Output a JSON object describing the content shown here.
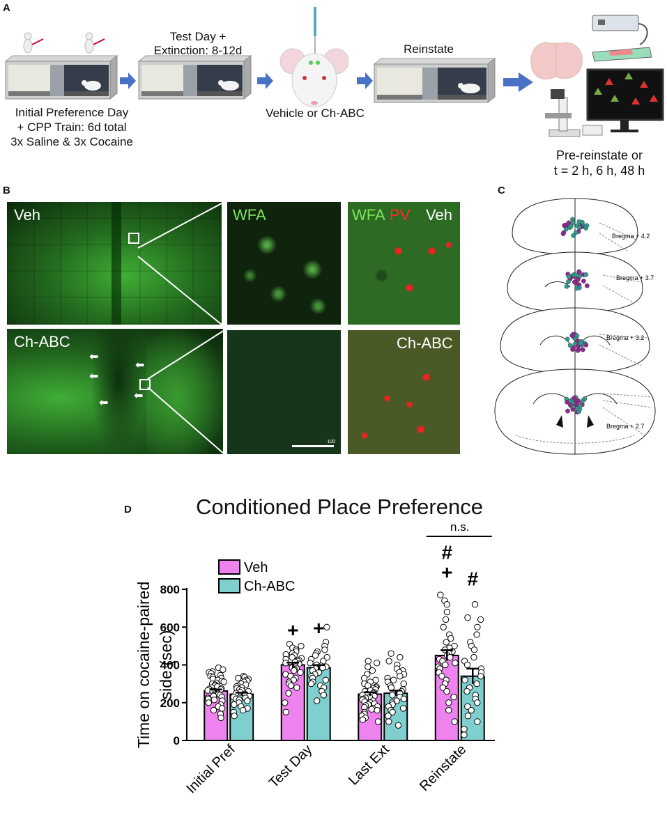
{
  "panelA": {
    "label": "A",
    "step1_line1": "Initial Preference Day",
    "step1_line2": "+ CPP Train: 6d total",
    "step1_line3": "3x Saline & 3x Cocaine",
    "step2_line1": "Test Day +",
    "step2_line2": "Extinction: 8-12d",
    "step3": "Vehicle or Ch-ABC",
    "step4": "Reinstate",
    "step5_line1": "Pre-reinstate or",
    "step5_line2": "t = 2 h, 6 h, 48 h"
  },
  "panelB": {
    "label": "B",
    "veh": "Veh",
    "chabc": "Ch-ABC",
    "wfa": "WFA",
    "wfa2": "WFA",
    "pv": "PV",
    "veh2": "Veh",
    "chabc2": "Ch-ABC",
    "scale": "100"
  },
  "panelC": {
    "label": "C",
    "levels": [
      "Bregma + 4.2",
      "Bregma + 3.7",
      "Bregma + 3.2",
      "Bregma + 2.7"
    ]
  },
  "panelD": {
    "label": "D",
    "colors": {
      "veh": "#ee82ee",
      "chabc": "#7fcfcf"
    },
    "sig": {
      "plus": "+",
      "hash": "#",
      "ns": "n.s."
    }
  },
  "chart_data": {
    "type": "bar",
    "title": "Conditioned Place Preference",
    "ylabel_line1": "Time on cocaine-paired",
    "ylabel_line2": "side (sec)",
    "categories": [
      "Initial Pref",
      "Test Day",
      "Last Ext",
      "Reinstate"
    ],
    "ylim": [
      0,
      800
    ],
    "yticks": [
      "0",
      "200",
      "400",
      "600",
      "800"
    ],
    "legend_position": "top-left",
    "series": [
      {
        "name": "Veh",
        "values": [
          262,
          400,
          245,
          450
        ],
        "sem": [
          8,
          12,
          10,
          28
        ],
        "points": [
          [
            385,
            375,
            365,
            360,
            355,
            345,
            340,
            335,
            330,
            325,
            320,
            315,
            310,
            305,
            300,
            295,
            290,
            285,
            280,
            275,
            272,
            270,
            265,
            262,
            260,
            255,
            250,
            245,
            240,
            235,
            230,
            225,
            220,
            215,
            210,
            200,
            190,
            180,
            170,
            160,
            140,
            120
          ],
          [
            510,
            500,
            490,
            480,
            470,
            460,
            455,
            450,
            440,
            435,
            430,
            425,
            420,
            415,
            410,
            405,
            400,
            395,
            390,
            385,
            380,
            375,
            370,
            360,
            350,
            340,
            330,
            320,
            310,
            300,
            290,
            280,
            250,
            200,
            150
          ],
          [
            420,
            410,
            390,
            370,
            350,
            330,
            320,
            310,
            300,
            290,
            285,
            280,
            275,
            270,
            265,
            260,
            255,
            250,
            245,
            240,
            235,
            230,
            225,
            220,
            215,
            210,
            205,
            200,
            195,
            190,
            185,
            180,
            175,
            170,
            165,
            160,
            150,
            140,
            130,
            120,
            110,
            100
          ],
          [
            770,
            740,
            720,
            680,
            640,
            600,
            560,
            540,
            520,
            500,
            490,
            480,
            470,
            460,
            450,
            440,
            430,
            420,
            410,
            400,
            390,
            380,
            360,
            340,
            320,
            300,
            280,
            260,
            230,
            200,
            160,
            100
          ]
        ]
      },
      {
        "name": "Ch-ABC",
        "values": [
          245,
          385,
          250,
          340
        ],
        "sem": [
          8,
          14,
          14,
          40
        ],
        "points": [
          [
            340,
            335,
            330,
            325,
            320,
            315,
            310,
            300,
            295,
            290,
            285,
            280,
            275,
            270,
            265,
            260,
            255,
            250,
            245,
            240,
            235,
            230,
            225,
            220,
            215,
            210,
            200,
            190,
            180,
            170,
            160,
            150,
            130
          ],
          [
            600,
            520,
            500,
            480,
            470,
            460,
            450,
            440,
            430,
            420,
            410,
            400,
            395,
            390,
            385,
            380,
            370,
            360,
            350,
            340,
            330,
            320,
            310,
            300,
            290,
            280,
            260,
            240,
            210
          ],
          [
            460,
            440,
            420,
            400,
            380,
            370,
            360,
            350,
            340,
            330,
            320,
            310,
            300,
            290,
            280,
            270,
            260,
            250,
            240,
            230,
            220,
            210,
            200,
            190,
            180,
            170,
            160,
            150,
            130,
            100,
            80
          ],
          [
            720,
            650,
            640,
            600,
            560,
            520,
            500,
            480,
            440,
            420,
            400,
            380,
            360,
            340,
            320,
            300,
            280,
            260,
            240,
            220,
            200,
            180,
            160,
            130,
            100,
            60,
            30
          ]
        ]
      }
    ]
  }
}
